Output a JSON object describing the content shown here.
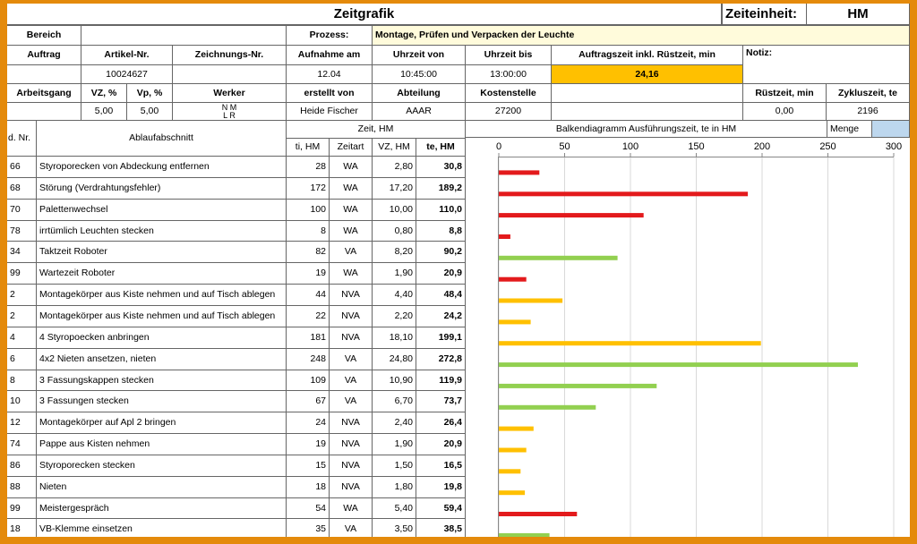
{
  "header": {
    "title": "Zeitgrafik",
    "unit_label": "Zeiteinheit:",
    "unit_value": "HM"
  },
  "info": {
    "bereich_label": "Bereich",
    "prozess_label": "Prozess:",
    "prozess_value": "Montage, Prüfen und Verpacken der Leuchte",
    "auftrag_label": "Auftrag",
    "artikel_label": "Artikel-Nr.",
    "artikel_value": "10024627",
    "zeichnung_label": "Zeichnungs-Nr.",
    "aufnahme_label": "Aufnahme am",
    "aufnahme_value": "12.04",
    "uhrzeit_von_label": "Uhrzeit von",
    "uhrzeit_von_value": "10:45:00",
    "uhrzeit_bis_label": "Uhrzeit bis",
    "uhrzeit_bis_value": "13:00:00",
    "auftragszeit_label": "Auftragszeit inkl. Rüstzeit, min",
    "auftragszeit_value": "24,16",
    "notiz_label": "Notiz:",
    "arbeitsgang_label": "Arbeitsgang",
    "vz_label": "VZ, %",
    "vz_value": "5,00",
    "vp_label": "Vp, %",
    "vp_value": "5,00",
    "werker_label": "Werker",
    "werker_value_1": "N M",
    "werker_value_2": "L R",
    "erstellt_label": "erstellt von",
    "erstellt_value": "Heide Fischer",
    "abteilung_label": "Abteilung",
    "abteilung_value": "AAAR",
    "kostenstelle_label": "Kostenstelle",
    "kostenstelle_value": "27200",
    "ruestzeit_label": "Rüstzeit, min",
    "ruestzeit_value": "0,00",
    "zykluszeit_label": "Zykluszeit, te",
    "zykluszeit_value": "2196"
  },
  "table": {
    "col_nr": "d. Nr.",
    "col_ablauf": "Ablaufabschnitt",
    "col_zeit_group": "Zeit, HM",
    "col_ti": "ti, HM",
    "col_zeitart": "Zeitart",
    "col_vz": "VZ, HM",
    "col_te": "te, HM",
    "chart_header": "Balkendiagramm Ausführungszeit, te in HM",
    "menge_label": "Menge",
    "rows": [
      {
        "nr": "66",
        "ablauf": "Styroporecken von Abdeckung entfernen",
        "ti": "28",
        "zeitart": "WA",
        "vz": "2,80",
        "te": "30,8"
      },
      {
        "nr": "68",
        "ablauf": "Störung (Verdrahtungsfehler)",
        "ti": "172",
        "zeitart": "WA",
        "vz": "17,20",
        "te": "189,2"
      },
      {
        "nr": "70",
        "ablauf": "Palettenwechsel",
        "ti": "100",
        "zeitart": "WA",
        "vz": "10,00",
        "te": "110,0"
      },
      {
        "nr": "78",
        "ablauf": "irrtümlich Leuchten stecken",
        "ti": "8",
        "zeitart": "WA",
        "vz": "0,80",
        "te": "8,8"
      },
      {
        "nr": "34",
        "ablauf": "Taktzeit Roboter",
        "ti": "82",
        "zeitart": "VA",
        "vz": "8,20",
        "te": "90,2"
      },
      {
        "nr": "99",
        "ablauf": "Wartezeit Roboter",
        "ti": "19",
        "zeitart": "WA",
        "vz": "1,90",
        "te": "20,9"
      },
      {
        "nr": "2",
        "ablauf": "Montagekörper aus Kiste nehmen und auf Tisch ablegen",
        "ti": "44",
        "zeitart": "NVA",
        "vz": "4,40",
        "te": "48,4"
      },
      {
        "nr": "2",
        "ablauf": "Montagekörper aus Kiste nehmen und auf Tisch ablegen",
        "ti": "22",
        "zeitart": "NVA",
        "vz": "2,20",
        "te": "24,2"
      },
      {
        "nr": "4",
        "ablauf": "4 Styropoecken anbringen",
        "ti": "181",
        "zeitart": "NVA",
        "vz": "18,10",
        "te": "199,1"
      },
      {
        "nr": "6",
        "ablauf": "4x2 Nieten ansetzen, nieten",
        "ti": "248",
        "zeitart": "VA",
        "vz": "24,80",
        "te": "272,8"
      },
      {
        "nr": "8",
        "ablauf": "3 Fassungskappen stecken",
        "ti": "109",
        "zeitart": "VA",
        "vz": "10,90",
        "te": "119,9"
      },
      {
        "nr": "10",
        "ablauf": "3 Fassungen stecken",
        "ti": "67",
        "zeitart": "VA",
        "vz": "6,70",
        "te": "73,7"
      },
      {
        "nr": "12",
        "ablauf": "Montagekörper auf Apl 2 bringen",
        "ti": "24",
        "zeitart": "NVA",
        "vz": "2,40",
        "te": "26,4"
      },
      {
        "nr": "74",
        "ablauf": "Pappe aus Kisten nehmen",
        "ti": "19",
        "zeitart": "NVA",
        "vz": "1,90",
        "te": "20,9"
      },
      {
        "nr": "86",
        "ablauf": "Styroporecken stecken",
        "ti": "15",
        "zeitart": "NVA",
        "vz": "1,50",
        "te": "16,5"
      },
      {
        "nr": "88",
        "ablauf": "Nieten",
        "ti": "18",
        "zeitart": "NVA",
        "vz": "1,80",
        "te": "19,8"
      },
      {
        "nr": "99",
        "ablauf": "Meistergespräch",
        "ti": "54",
        "zeitart": "WA",
        "vz": "5,40",
        "te": "59,4"
      },
      {
        "nr": "18",
        "ablauf": "VB-Klemme einsetzen",
        "ti": "35",
        "zeitart": "VA",
        "vz": "3,50",
        "te": "38,5"
      }
    ]
  },
  "chart_data": {
    "type": "bar",
    "orientation": "horizontal",
    "title": "Balkendiagramm Ausführungszeit, te in HM",
    "xlim": [
      0,
      300
    ],
    "x_ticks": [
      0,
      50,
      100,
      150,
      200,
      250,
      300
    ],
    "x_tick_labels": [
      "0",
      "50",
      "100",
      "150",
      "200",
      "250",
      "300"
    ],
    "grid": "vertical",
    "colors": {
      "WA": "#e31a1c",
      "VA": "#92d050",
      "NVA": "#ffc000"
    },
    "categories": [
      "Styroporecken von Abdeckung entfernen",
      "Störung (Verdrahtungsfehler)",
      "Palettenwechsel",
      "irrtümlich Leuchten stecken",
      "Taktzeit Roboter",
      "Wartezeit Roboter",
      "Montagekörper aus Kiste nehmen und auf Tisch ablegen",
      "Montagekörper aus Kiste nehmen und auf Tisch ablegen",
      "4 Styropoecken anbringen",
      "4x2 Nieten ansetzen, nieten",
      "3 Fassungskappen stecken",
      "3 Fassungen stecken",
      "Montagekörper auf Apl 2 bringen",
      "Pappe aus Kisten nehmen",
      "Styroporecken stecken",
      "Nieten",
      "Meistergespräch",
      "VB-Klemme einsetzen"
    ],
    "values": [
      30.8,
      189.2,
      110.0,
      8.8,
      90.2,
      20.9,
      48.4,
      24.2,
      199.1,
      272.8,
      119.9,
      73.7,
      26.4,
      20.9,
      16.5,
      19.8,
      59.4,
      38.5
    ],
    "zeitart": [
      "WA",
      "WA",
      "WA",
      "WA",
      "VA",
      "WA",
      "NVA",
      "NVA",
      "NVA",
      "VA",
      "VA",
      "VA",
      "NVA",
      "NVA",
      "NVA",
      "NVA",
      "WA",
      "VA"
    ]
  }
}
